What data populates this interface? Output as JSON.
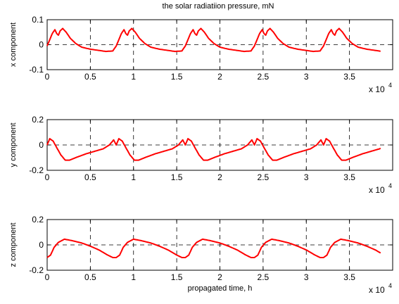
{
  "figure": {
    "title": "the solar radiatiion pressure, mN",
    "x_multiplier_base": "x 10",
    "x_multiplier_exponent": "4",
    "line_color": "#ff0000",
    "reference_line_color": "#000000"
  },
  "chart_data": [
    {
      "type": "line",
      "title": "the solar radiatiion pressure, mN",
      "xlabel": "",
      "ylabel": "x component",
      "xlim": [
        0,
        40000
      ],
      "ylim": [
        -0.1,
        0.1
      ],
      "xticks": [
        0,
        5000,
        10000,
        15000,
        20000,
        25000,
        30000,
        35000
      ],
      "xtick_labels": [
        "0",
        "0.5",
        "1",
        "1.5",
        "2",
        "2.5",
        "3",
        "3.5"
      ],
      "yticks": [
        -0.1,
        0,
        0.1
      ],
      "ytick_labels": [
        "-0.1",
        "0",
        "0.1"
      ],
      "grid": true,
      "period": 8000,
      "x_end": 38600,
      "profile": [
        [
          0,
          -0.005
        ],
        [
          300,
          0.02
        ],
        [
          600,
          0.045
        ],
        [
          900,
          0.06
        ],
        [
          1100,
          0.045
        ],
        [
          1300,
          0.038
        ],
        [
          1500,
          0.055
        ],
        [
          1800,
          0.065
        ],
        [
          2200,
          0.05
        ],
        [
          2700,
          0.025
        ],
        [
          3300,
          0.005
        ],
        [
          4000,
          -0.01
        ],
        [
          5000,
          -0.018
        ],
        [
          6000,
          -0.023
        ],
        [
          6800,
          -0.027
        ],
        [
          7600,
          -0.025
        ],
        [
          8000,
          -0.005
        ]
      ],
      "series": [
        {
          "values": []
        }
      ]
    },
    {
      "type": "line",
      "xlabel": "",
      "ylabel": "y component",
      "xlim": [
        0,
        40000
      ],
      "ylim": [
        -0.2,
        0.2
      ],
      "xticks": [
        0,
        5000,
        10000,
        15000,
        20000,
        25000,
        30000,
        35000
      ],
      "xtick_labels": [
        "0",
        "0.5",
        "1",
        "1.5",
        "2",
        "2.5",
        "3",
        "3.5"
      ],
      "yticks": [
        -0.2,
        0,
        0.2
      ],
      "ytick_labels": [
        "-0.2",
        "0",
        "0.2"
      ],
      "grid": true,
      "period": 8000,
      "x_end": 38600,
      "profile": [
        [
          0,
          0.0
        ],
        [
          300,
          0.05
        ],
        [
          700,
          0.03
        ],
        [
          1100,
          -0.02
        ],
        [
          1600,
          -0.08
        ],
        [
          2100,
          -0.12
        ],
        [
          2600,
          -0.12
        ],
        [
          3500,
          -0.095
        ],
        [
          4500,
          -0.07
        ],
        [
          5500,
          -0.05
        ],
        [
          6500,
          -0.03
        ],
        [
          7200,
          0.0
        ],
        [
          7700,
          0.04
        ],
        [
          8000,
          0.0
        ]
      ],
      "series": [
        {
          "values": []
        }
      ]
    },
    {
      "type": "line",
      "xlabel": "propagated time, h",
      "ylabel": "z component",
      "xlim": [
        0,
        40000
      ],
      "ylim": [
        -0.2,
        0.2
      ],
      "xticks": [
        0,
        5000,
        10000,
        15000,
        20000,
        25000,
        30000,
        35000
      ],
      "xtick_labels": [
        "0",
        "0.5",
        "1",
        "1.5",
        "2",
        "2.5",
        "3",
        "3.5"
      ],
      "yticks": [
        -0.2,
        0,
        0.2
      ],
      "ytick_labels": [
        "-0.2",
        "0",
        "0.2"
      ],
      "grid": true,
      "period": 8000,
      "x_end": 38600,
      "profile": [
        [
          0,
          -0.1
        ],
        [
          400,
          -0.08
        ],
        [
          800,
          -0.02
        ],
        [
          1300,
          0.02
        ],
        [
          2000,
          0.045
        ],
        [
          2800,
          0.035
        ],
        [
          4000,
          0.015
        ],
        [
          5000,
          -0.01
        ],
        [
          6000,
          -0.04
        ],
        [
          7000,
          -0.08
        ],
        [
          7600,
          -0.1
        ],
        [
          8000,
          -0.1
        ]
      ],
      "series": [
        {
          "values": []
        }
      ]
    }
  ]
}
